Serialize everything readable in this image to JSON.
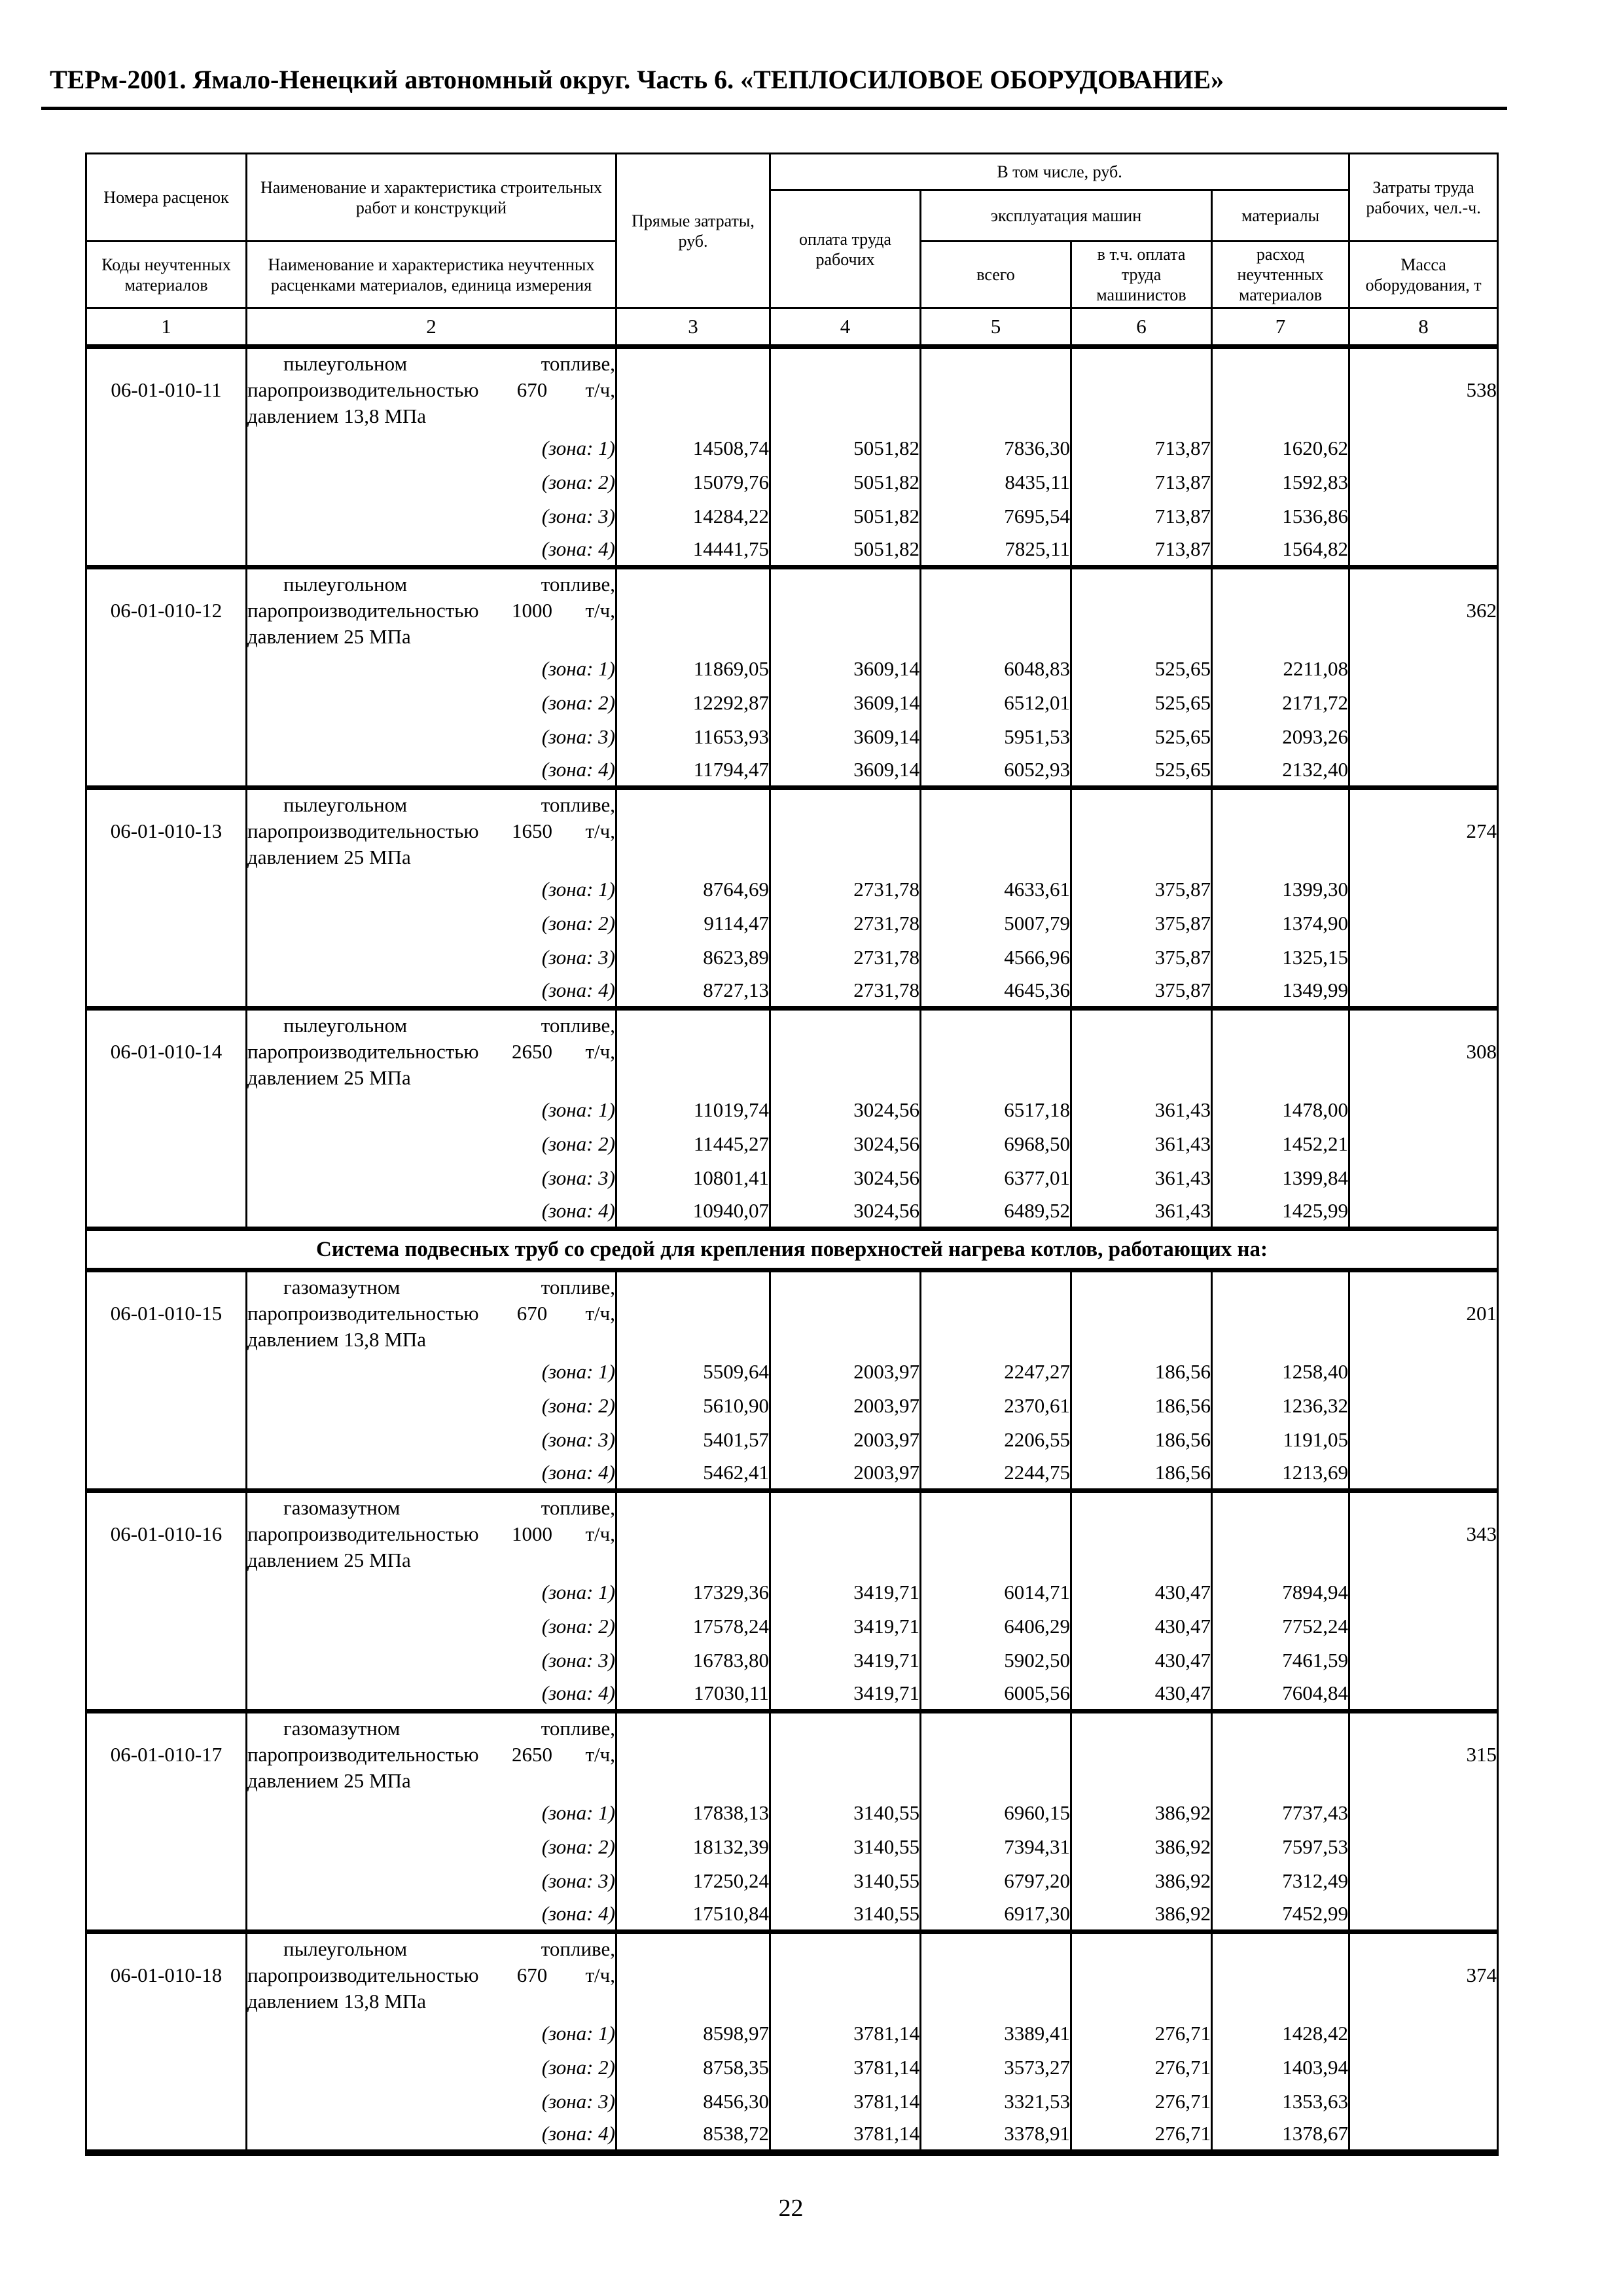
{
  "page": {
    "header": "ТЕРм-2001. Ямало-Ненецкий автономный округ. Часть 6. «ТЕПЛОСИЛОВОЕ ОБОРУДОВАНИЕ»",
    "page_number": "22"
  },
  "table": {
    "header": {
      "col1_top": "Номера расценок",
      "col1_bottom": "Коды неучтенных материалов",
      "col2_top": "Наименование и характеристика строительных работ и конструкций",
      "col2_bottom": "Наименование и характеристика неучтенных расценками материалов, единица измерения",
      "col3": "Прямые затраты, руб.",
      "including": "В том числе, руб.",
      "col4": "оплата труда рабочих",
      "machines": "эксплуатация машин",
      "col5": "всего",
      "col6": "в т.ч. оплата труда машинистов",
      "col7_top": "материалы",
      "col7_bottom": "расход неучтенных материалов",
      "col8_top": "Затраты труда рабочих, чел.-ч.",
      "col8_bottom": "Масса оборудования, т",
      "column_numbers": [
        "1",
        "2",
        "3",
        "4",
        "5",
        "6",
        "7",
        "8"
      ]
    },
    "sections": [
      {
        "heading": "",
        "groups": [
          {
            "code": "06-01-010-11",
            "description": "пылеугольном топливе, паропроизводительностью 670 т/ч, давлением 13,8 МПа",
            "mass": "538",
            "zones": [
              {
                "label": "(зона: 1)",
                "values": [
                  "14508,74",
                  "5051,82",
                  "7836,30",
                  "713,87",
                  "1620,62"
                ]
              },
              {
                "label": "(зона: 2)",
                "values": [
                  "15079,76",
                  "5051,82",
                  "8435,11",
                  "713,87",
                  "1592,83"
                ]
              },
              {
                "label": "(зона: 3)",
                "values": [
                  "14284,22",
                  "5051,82",
                  "7695,54",
                  "713,87",
                  "1536,86"
                ]
              },
              {
                "label": "(зона: 4)",
                "values": [
                  "14441,75",
                  "5051,82",
                  "7825,11",
                  "713,87",
                  "1564,82"
                ]
              }
            ]
          },
          {
            "code": "06-01-010-12",
            "description": "пылеугольном топливе, паропроизводительностью 1000 т/ч, давлением 25 МПа",
            "mass": "362",
            "zones": [
              {
                "label": "(зона: 1)",
                "values": [
                  "11869,05",
                  "3609,14",
                  "6048,83",
                  "525,65",
                  "2211,08"
                ]
              },
              {
                "label": "(зона: 2)",
                "values": [
                  "12292,87",
                  "3609,14",
                  "6512,01",
                  "525,65",
                  "2171,72"
                ]
              },
              {
                "label": "(зона: 3)",
                "values": [
                  "11653,93",
                  "3609,14",
                  "5951,53",
                  "525,65",
                  "2093,26"
                ]
              },
              {
                "label": "(зона: 4)",
                "values": [
                  "11794,47",
                  "3609,14",
                  "6052,93",
                  "525,65",
                  "2132,40"
                ]
              }
            ]
          },
          {
            "code": "06-01-010-13",
            "description": "пылеугольном топливе, паропроизводительностью 1650 т/ч, давлением 25 МПа",
            "mass": "274",
            "zones": [
              {
                "label": "(зона: 1)",
                "values": [
                  "8764,69",
                  "2731,78",
                  "4633,61",
                  "375,87",
                  "1399,30"
                ]
              },
              {
                "label": "(зона: 2)",
                "values": [
                  "9114,47",
                  "2731,78",
                  "5007,79",
                  "375,87",
                  "1374,90"
                ]
              },
              {
                "label": "(зона: 3)",
                "values": [
                  "8623,89",
                  "2731,78",
                  "4566,96",
                  "375,87",
                  "1325,15"
                ]
              },
              {
                "label": "(зона: 4)",
                "values": [
                  "8727,13",
                  "2731,78",
                  "4645,36",
                  "375,87",
                  "1349,99"
                ]
              }
            ]
          },
          {
            "code": "06-01-010-14",
            "description": "пылеугольном топливе, паропроизводительностью 2650 т/ч, давлением 25 МПа",
            "mass": "308",
            "zones": [
              {
                "label": "(зона: 1)",
                "values": [
                  "11019,74",
                  "3024,56",
                  "6517,18",
                  "361,43",
                  "1478,00"
                ]
              },
              {
                "label": "(зона: 2)",
                "values": [
                  "11445,27",
                  "3024,56",
                  "6968,50",
                  "361,43",
                  "1452,21"
                ]
              },
              {
                "label": "(зона: 3)",
                "values": [
                  "10801,41",
                  "3024,56",
                  "6377,01",
                  "361,43",
                  "1399,84"
                ]
              },
              {
                "label": "(зона: 4)",
                "values": [
                  "10940,07",
                  "3024,56",
                  "6489,52",
                  "361,43",
                  "1425,99"
                ]
              }
            ]
          }
        ]
      },
      {
        "heading": "Система подвесных труб со средой для крепления поверхностей нагрева котлов, работающих на:",
        "groups": [
          {
            "code": "06-01-010-15",
            "description": "газомазутном топливе, паропроизводительностью 670 т/ч, давлением 13,8 МПа",
            "mass": "201",
            "zones": [
              {
                "label": "(зона: 1)",
                "values": [
                  "5509,64",
                  "2003,97",
                  "2247,27",
                  "186,56",
                  "1258,40"
                ]
              },
              {
                "label": "(зона: 2)",
                "values": [
                  "5610,90",
                  "2003,97",
                  "2370,61",
                  "186,56",
                  "1236,32"
                ]
              },
              {
                "label": "(зона: 3)",
                "values": [
                  "5401,57",
                  "2003,97",
                  "2206,55",
                  "186,56",
                  "1191,05"
                ]
              },
              {
                "label": "(зона: 4)",
                "values": [
                  "5462,41",
                  "2003,97",
                  "2244,75",
                  "186,56",
                  "1213,69"
                ]
              }
            ]
          },
          {
            "code": "06-01-010-16",
            "description": "газомазутном топливе, паропроизводительностью 1000 т/ч, давлением 25 МПа",
            "mass": "343",
            "zones": [
              {
                "label": "(зона: 1)",
                "values": [
                  "17329,36",
                  "3419,71",
                  "6014,71",
                  "430,47",
                  "7894,94"
                ]
              },
              {
                "label": "(зона: 2)",
                "values": [
                  "17578,24",
                  "3419,71",
                  "6406,29",
                  "430,47",
                  "7752,24"
                ]
              },
              {
                "label": "(зона: 3)",
                "values": [
                  "16783,80",
                  "3419,71",
                  "5902,50",
                  "430,47",
                  "7461,59"
                ]
              },
              {
                "label": "(зона: 4)",
                "values": [
                  "17030,11",
                  "3419,71",
                  "6005,56",
                  "430,47",
                  "7604,84"
                ]
              }
            ]
          },
          {
            "code": "06-01-010-17",
            "description": "газомазутном топливе, паропроизводительностью 2650 т/ч, давлением 25 МПа",
            "mass": "315",
            "zones": [
              {
                "label": "(зона: 1)",
                "values": [
                  "17838,13",
                  "3140,55",
                  "6960,15",
                  "386,92",
                  "7737,43"
                ]
              },
              {
                "label": "(зона: 2)",
                "values": [
                  "18132,39",
                  "3140,55",
                  "7394,31",
                  "386,92",
                  "7597,53"
                ]
              },
              {
                "label": "(зона: 3)",
                "values": [
                  "17250,24",
                  "3140,55",
                  "6797,20",
                  "386,92",
                  "7312,49"
                ]
              },
              {
                "label": "(зона: 4)",
                "values": [
                  "17510,84",
                  "3140,55",
                  "6917,30",
                  "386,92",
                  "7452,99"
                ]
              }
            ]
          },
          {
            "code": "06-01-010-18",
            "description": "пылеугольном топливе, паропроизводительностью 670 т/ч, давлением 13,8 МПа",
            "mass": "374",
            "zones": [
              {
                "label": "(зона: 1)",
                "values": [
                  "8598,97",
                  "3781,14",
                  "3389,41",
                  "276,71",
                  "1428,42"
                ]
              },
              {
                "label": "(зона: 2)",
                "values": [
                  "8758,35",
                  "3781,14",
                  "3573,27",
                  "276,71",
                  "1403,94"
                ]
              },
              {
                "label": "(зона: 3)",
                "values": [
                  "8456,30",
                  "3781,14",
                  "3321,53",
                  "276,71",
                  "1353,63"
                ]
              },
              {
                "label": "(зона: 4)",
                "values": [
                  "8538,72",
                  "3781,14",
                  "3378,91",
                  "276,71",
                  "1378,67"
                ]
              }
            ]
          }
        ]
      }
    ]
  }
}
